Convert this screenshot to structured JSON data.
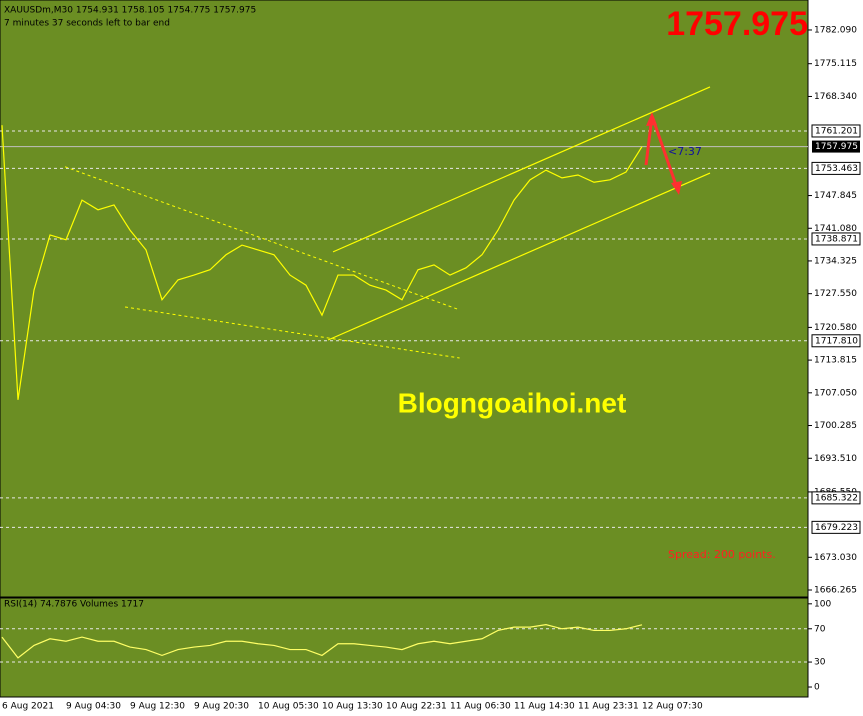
{
  "chart_data": [
    {
      "type": "line",
      "title": "XAUUSDm,M30  1754.931 1758.105 1754.775 1757.975",
      "subtitle": "7 minutes 37 seconds left to bar end",
      "big_price": "1757.975",
      "watermark": "Blogngoaihoi.net",
      "spread": "Spread: 200 points.",
      "timer": "<7:37",
      "categories": [
        "6 Aug 2021",
        null,
        null,
        null,
        "9 Aug 04:30",
        null,
        null,
        null,
        "9 Aug 12:30",
        null,
        null,
        null,
        "9 Aug 20:30",
        null,
        null,
        null,
        "10 Aug 05:30",
        null,
        null,
        null,
        "10 Aug 13:30",
        null,
        null,
        null,
        "10 Aug 22:31",
        null,
        null,
        null,
        "11 Aug 06:30",
        null,
        null,
        null,
        "11 Aug 14:30",
        null,
        null,
        null,
        "11 Aug 23:31",
        null,
        null,
        null,
        "12 Aug 07:30"
      ],
      "series": [
        {
          "name": "XAUUSDm",
          "color": "#ffff00",
          "values": [
            1762.4,
            1705.6,
            1728.3,
            1739.7,
            1738.7,
            1746.9,
            1744.9,
            1745.9,
            1740.7,
            1736.6,
            1726.3,
            1730.4,
            1731.4,
            1732.5,
            1735.6,
            1737.6,
            1736.6,
            1735.6,
            1731.4,
            1729.3,
            1723.1,
            1731.4,
            1731.4,
            1729.3,
            1728.3,
            1726.3,
            1732.5,
            1733.5,
            1731.4,
            1732.9,
            1735.6,
            1740.7,
            1746.9,
            1751.1,
            1753.1,
            1751.5,
            1752.1,
            1750.6,
            1751.1,
            1752.7,
            1757.975
          ]
        }
      ],
      "ylim": [
        1664.82,
        1788.29
      ],
      "yticks": [
        {
          "value": 1782.09,
          "label": "1782.090"
        },
        1775.115,
        {
          "value": 1768.34,
          "label": "1768.340"
        },
        1747.845,
        {
          "value": 1741.08,
          "label": "1741.080"
        },
        1734.325,
        {
          "value": 1727.55,
          "label": "1727.550"
        },
        {
          "value": 1720.58,
          "label": "1720.580"
        },
        1713.815,
        {
          "value": 1707.05,
          "label": "1707.050"
        },
        1700.285,
        {
          "value": 1693.51,
          "label": "1693.510"
        },
        {
          "value": 1686.55,
          "label": "1686.550"
        },
        {
          "value": 1673.03,
          "label": "1673.030"
        },
        1666.265
      ],
      "levels": [
        1761.201,
        1753.463,
        1738.871,
        {
          "value": 1717.81,
          "label": "1717.810"
        },
        1685.322,
        1679.223
      ],
      "current_price": 1757.975,
      "trendlines": [
        {
          "style": "solid",
          "x": [
            20.69,
            44.25
          ],
          "y": [
            1736.2,
            1770.3
          ]
        },
        {
          "style": "solid",
          "x": [
            20.38,
            44.25
          ],
          "y": [
            1717.97,
            1752.5
          ]
        },
        {
          "style": "dashed",
          "x": [
            3.94,
            28.6
          ],
          "y": [
            1753.8,
            1724.2
          ]
        },
        {
          "style": "dashed",
          "x": [
            7.69,
            28.6
          ],
          "y": [
            1724.8,
            1714.25
          ]
        }
      ]
    },
    {
      "type": "line",
      "title": "RSI(14) 74.7876",
      "volumes_label": "Volumes 1717",
      "series": [
        {
          "name": "RSI(14)",
          "color": "#ffff66",
          "values": [
            60,
            35,
            50,
            58,
            55,
            60,
            55,
            55,
            48,
            45,
            38,
            45,
            48,
            50,
            55,
            55,
            52,
            50,
            45,
            45,
            38,
            52,
            52,
            50,
            48,
            45,
            52,
            55,
            52,
            55,
            58,
            68,
            72,
            72,
            75,
            70,
            72,
            68,
            68,
            70,
            74.79
          ]
        }
      ],
      "ylim": [
        -12,
        107
      ],
      "yticks": [
        100,
        70,
        30,
        0
      ],
      "levels": [
        70,
        30
      ]
    }
  ]
}
